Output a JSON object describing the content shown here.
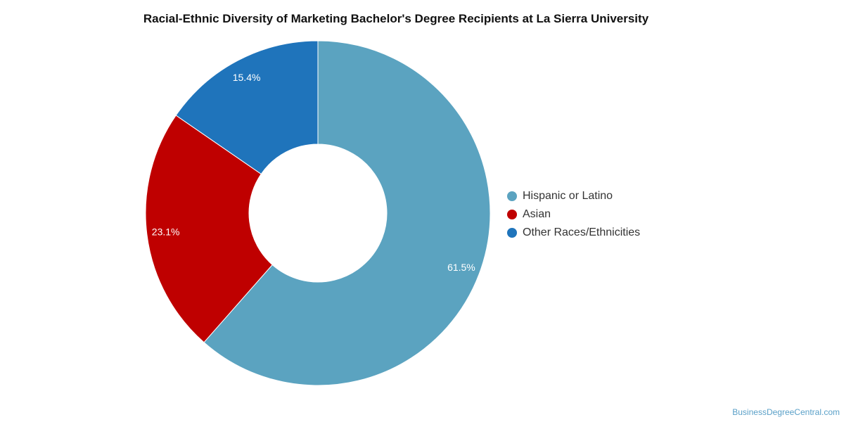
{
  "chart_data": {
    "type": "pie",
    "title": "Racial-Ethnic Diversity of Marketing Bachelor's Degree Recipients at La Sierra University",
    "legend_placement": "right",
    "donut": true,
    "series": [
      {
        "name": "Hispanic or Latino",
        "value": 61.5,
        "label": "61.5%",
        "color": "#5ba3c0"
      },
      {
        "name": "Asian",
        "value": 23.1,
        "label": "23.1%",
        "color": "#bf0000"
      },
      {
        "name": "Other Races/Ethnicities",
        "value": 15.4,
        "label": "15.4%",
        "color": "#1f74bb"
      }
    ]
  },
  "watermark": "BusinessDegreeCentral.com"
}
